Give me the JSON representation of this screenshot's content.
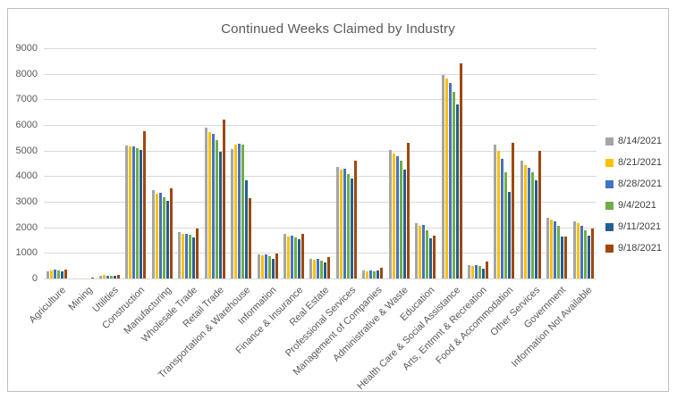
{
  "chart_data": {
    "type": "bar",
    "title": "Continued Weeks Claimed by Industry",
    "xlabel": "",
    "ylabel": "",
    "ylim": [
      0,
      9000
    ],
    "ytick_step": 1000,
    "grid": true,
    "legend_position": "right",
    "categories": [
      "Agriculture",
      "Mining",
      "Utilities",
      "Construction",
      "Manufacturing",
      "Wholesale Trade",
      "Retail Trade",
      "Transportation & Warehouse",
      "Information",
      "Finance & Insurance",
      "Real Estate",
      "Professional Services",
      "Management of Companies",
      "Administrative & Waste",
      "Education",
      "Health Care & Social Assistance",
      "Arts, Entmnt & Recreation",
      "Food & Accommodation",
      "Other Services",
      "Government",
      "Information Not Available"
    ],
    "series": [
      {
        "name": "8/14/2021",
        "color": "#a5a5a5",
        "values": [
          290,
          15,
          120,
          5190,
          3450,
          1830,
          5900,
          5060,
          930,
          1730,
          770,
          4360,
          330,
          5010,
          2170,
          7960,
          520,
          5220,
          4600,
          2390,
          2220
        ]
      },
      {
        "name": "8/21/2021",
        "color": "#ffc000",
        "values": [
          320,
          10,
          130,
          5150,
          3310,
          1760,
          5720,
          5230,
          900,
          1650,
          740,
          4250,
          280,
          4870,
          2050,
          7810,
          480,
          5000,
          4430,
          2290,
          2160
        ]
      },
      {
        "name": "8/28/2021",
        "color": "#4472c4",
        "values": [
          360,
          15,
          120,
          5170,
          3350,
          1740,
          5640,
          5270,
          930,
          1670,
          760,
          4290,
          300,
          4790,
          2090,
          7650,
          540,
          4660,
          4310,
          2220,
          2050
        ]
      },
      {
        "name": "9/4/2021",
        "color": "#70ad47",
        "values": [
          310,
          10,
          110,
          5090,
          3160,
          1700,
          5400,
          5220,
          880,
          1620,
          700,
          4090,
          280,
          4590,
          1880,
          7290,
          490,
          4160,
          4140,
          2050,
          1900
        ]
      },
      {
        "name": "9/11/2021",
        "color": "#255e91",
        "values": [
          280,
          10,
          100,
          5030,
          3050,
          1590,
          4950,
          3830,
          760,
          1530,
          640,
          3920,
          300,
          4270,
          1560,
          6810,
          400,
          3370,
          3850,
          1630,
          1690
        ]
      },
      {
        "name": "9/18/2021",
        "color": "#9e480e",
        "values": [
          360,
          20,
          130,
          5760,
          3540,
          1950,
          6220,
          3130,
          960,
          1760,
          850,
          4610,
          430,
          5300,
          1680,
          8420,
          670,
          5300,
          4980,
          1640,
          1960
        ]
      }
    ]
  }
}
